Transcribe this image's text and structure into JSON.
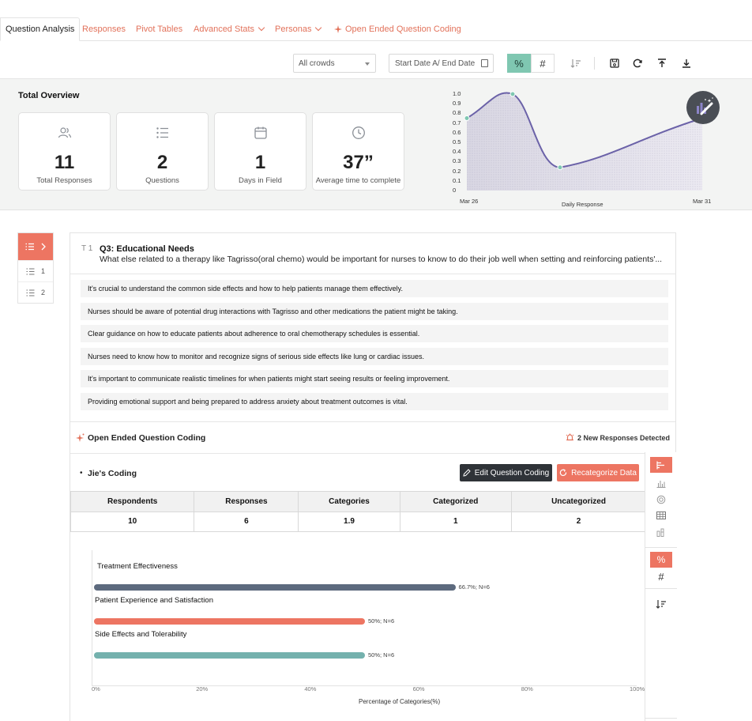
{
  "tabs": [
    {
      "label": "Question Analysis",
      "active": true
    },
    {
      "label": "Responses"
    },
    {
      "label": "Pivot Tables"
    },
    {
      "label": "Advanced Stats"
    },
    {
      "label": "Personas"
    },
    {
      "label": "Open Ended Question Coding"
    }
  ],
  "toolbar": {
    "crowd_select": "All crowds",
    "date_range": "Start Date A/ End Date",
    "percent_symbol": "%",
    "count_symbol": "#"
  },
  "overview": {
    "title": "Total Overview",
    "cards": [
      {
        "value": "11",
        "label": "Total Responses",
        "icon": "users-icon"
      },
      {
        "value": "2",
        "label": "Questions",
        "icon": "list-icon"
      },
      {
        "value": "1",
        "label": "Days in Field",
        "icon": "calendar-icon"
      },
      {
        "value": "37”",
        "label": "Average time to complete",
        "icon": "clock-icon"
      }
    ]
  },
  "chart_data": {
    "type": "line",
    "x": [
      "Mar 26",
      "",
      "",
      "Mar 31"
    ],
    "y_ticks": [
      "1.0",
      "0.9",
      "0.8",
      "0.7",
      "0.6",
      "0.5",
      "0.4",
      "0.3",
      "0.2",
      "0.1",
      "0"
    ],
    "x_tick_labels": [
      "Mar 26",
      "Mar 31"
    ],
    "values": [
      0.75,
      1.0,
      0.24,
      0.75
    ],
    "xlabel": "Daily Response",
    "ylim": [
      0,
      1.0
    ],
    "color": "#6b62a8"
  },
  "sidenav": {
    "items": [
      {
        "label": "1"
      },
      {
        "label": "2"
      }
    ]
  },
  "question": {
    "type_label": "T 1",
    "title": "Q3: Educational Needs",
    "text": "What else related to a therapy like Tagrisso(oral chemo) would be important for nurses to know to do their job well when setting and reinforcing patients'..."
  },
  "responses": [
    "It's crucial to understand the common side effects and how to help patients manage them effectively.",
    "Nurses should be aware of potential drug interactions with Tagrisso and other medications the patient might be taking.",
    "Clear guidance on how to educate patients about adherence to oral chemotherapy schedules is essential.",
    "Nurses need to know how to monitor and recognize signs of serious side effects like lung or cardiac issues.",
    "It's important to communicate realistic timelines for when patients might start seeing results or feeling improvement.",
    "Providing emotional support and being prepared to address anxiety about treatment outcomes is vital."
  ],
  "coding": {
    "section_title": "Open Ended Question Coding",
    "new_responses": "2 New Responses Detected",
    "coding_title": "Jie's Coding",
    "edit_button": "Edit Question Coding",
    "recategorize_button": "Recategorize Data",
    "stats_headers": [
      "Respondents",
      "Responses",
      "Categories",
      "Categorized",
      "Uncategorized"
    ],
    "stats_values": [
      "10",
      "6",
      "1.9",
      "1",
      "2"
    ]
  },
  "category_chart": {
    "type": "bar",
    "categories": [
      "Treatment Effectiveness",
      "Patient Experience and Satisfaction",
      "Side Effects and Tolerability"
    ],
    "values": [
      66.7,
      50,
      50
    ],
    "value_labels": [
      "66.7%; N=6",
      "50%; N=6",
      "50%; N=6"
    ],
    "colors": [
      "#5d6a7e",
      "#ed7562",
      "#74b1ad"
    ],
    "ticks": [
      "0%",
      "20%",
      "40%",
      "60%",
      "80%",
      "100%"
    ],
    "xlabel": "Percentage of Categories(%)",
    "xlim": [
      0,
      100
    ]
  }
}
